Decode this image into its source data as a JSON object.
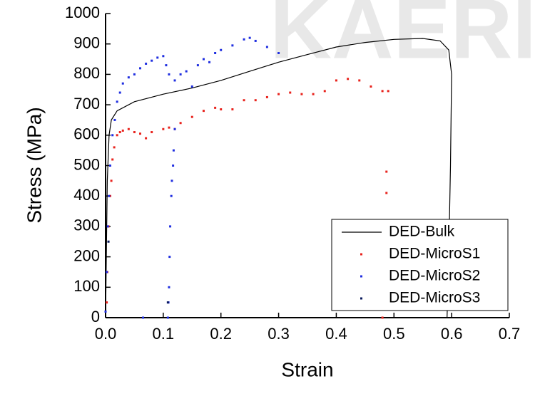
{
  "chart_data": {
    "type": "line-scatter",
    "watermark": "KAERI",
    "x_label": "Strain",
    "y_label": "Stress (MPa)",
    "xlim": [
      0,
      0.7
    ],
    "ylim": [
      0,
      1000
    ],
    "xticks": [
      {
        "value": 0,
        "label": "0.0"
      },
      0.1,
      0.2,
      0.3,
      0.4,
      0.5,
      0.6,
      0.7
    ],
    "yticks": [
      0,
      100,
      200,
      300,
      400,
      500,
      600,
      700,
      800,
      900,
      1000
    ],
    "legend": "lower right",
    "series": [
      {
        "name": "DED-Bulk",
        "color": "#000000",
        "style": "line",
        "x": [
          0,
          0.003,
          0.006,
          0.01,
          0.02,
          0.05,
          0.1,
          0.15,
          0.2,
          0.25,
          0.3,
          0.35,
          0.4,
          0.45,
          0.5,
          0.55,
          0.58,
          0.595,
          0.6,
          0.598,
          0.595,
          0.592
        ],
        "values": [
          0,
          450,
          600,
          650,
          680,
          710,
          735,
          755,
          780,
          810,
          840,
          865,
          890,
          905,
          915,
          918,
          910,
          880,
          800,
          500,
          200,
          0
        ]
      },
      {
        "name": "DED-MicroS1",
        "color": "#e8221c",
        "style": "dots",
        "x": [
          0.002,
          0.003,
          0.005,
          0.008,
          0.01,
          0.012,
          0.015,
          0.02,
          0.025,
          0.03,
          0.04,
          0.05,
          0.06,
          0.07,
          0.08,
          0.1,
          0.11,
          0.12,
          0.13,
          0.15,
          0.17,
          0.19,
          0.2,
          0.22,
          0.24,
          0.26,
          0.28,
          0.3,
          0.32,
          0.34,
          0.36,
          0.38,
          0.4,
          0.42,
          0.44,
          0.46,
          0.48,
          0.49,
          0.487,
          0.487,
          0.48
        ],
        "values": [
          50,
          150,
          300,
          400,
          450,
          520,
          560,
          600,
          610,
          615,
          620,
          610,
          605,
          590,
          610,
          620,
          625,
          620,
          640,
          660,
          680,
          690,
          685,
          685,
          715,
          715,
          725,
          735,
          740,
          735,
          735,
          745,
          780,
          785,
          780,
          760,
          745,
          745,
          480,
          410,
          0
        ]
      },
      {
        "name": "DED-MicroS2",
        "color": "#1f2ee0",
        "style": "dots",
        "x": [
          0,
          0.002,
          0.004,
          0.006,
          0.008,
          0.012,
          0.016,
          0.02,
          0.025,
          0.03,
          0.04,
          0.05,
          0.06,
          0.07,
          0.08,
          0.09,
          0.1,
          0.105,
          0.065,
          0.108,
          0.109,
          0.11,
          0.111,
          0.112,
          0.114,
          0.115,
          0.117,
          0.118,
          0.12,
          0.11,
          0.12,
          0.13,
          0.14,
          0.15,
          0.16,
          0.17,
          0.18,
          0.19,
          0.2,
          0.22,
          0.24,
          0.25,
          0.26,
          0.28,
          0.3
        ],
        "values": [
          20,
          150,
          300,
          400,
          500,
          600,
          650,
          710,
          740,
          770,
          790,
          800,
          820,
          835,
          845,
          855,
          860,
          830,
          0,
          0,
          50,
          100,
          200,
          300,
          400,
          450,
          500,
          550,
          620,
          800,
          780,
          800,
          810,
          760,
          830,
          850,
          840,
          870,
          880,
          895,
          915,
          920,
          910,
          890,
          870
        ]
      },
      {
        "name": "DED-MicroS3",
        "color": "#0a1a5c",
        "style": "dots",
        "x": [
          0.005,
          0.108
        ],
        "values": [
          250,
          50
        ]
      }
    ]
  }
}
